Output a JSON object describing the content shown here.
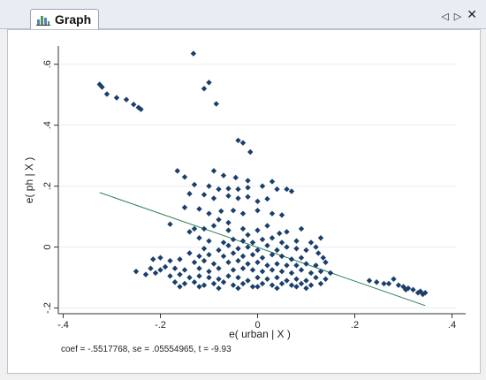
{
  "window": {
    "tab_label": "Graph",
    "tab_icon": "bar-chart-icon",
    "controls": {
      "prev": "◁",
      "next": "▷",
      "close": "✕"
    }
  },
  "caption": "coef = -.5517768, se = .05554965, t = -9.93",
  "colors": {
    "marker": "#1a3f6b",
    "line": "#2e7d5b",
    "plot_bg": "#ffffff",
    "grid": "#e8eef4"
  },
  "chart_data": {
    "type": "scatter",
    "xlabel": "e( urban | X )",
    "ylabel": "e( ph | X )",
    "xlim": [
      -0.41,
      0.41
    ],
    "ylim": [
      -0.21,
      0.66
    ],
    "xticks": [
      -0.4,
      -0.2,
      0,
      0.2,
      0.4
    ],
    "xtick_labels": [
      "-.4",
      "-.2",
      "0",
      ".2",
      ".4"
    ],
    "yticks": [
      -0.2,
      0,
      0.2,
      0.4,
      0.6
    ],
    "ytick_labels": [
      "-.2",
      "0",
      ".2",
      ".4",
      ".6"
    ],
    "grid": true,
    "fit_line": {
      "x": [
        -0.325,
        0.345
      ],
      "y": [
        0.179,
        -0.192
      ]
    },
    "points": [
      [
        -0.325,
        0.534
      ],
      [
        -0.32,
        0.525
      ],
      [
        -0.31,
        0.502
      ],
      [
        -0.29,
        0.49
      ],
      [
        -0.27,
        0.484
      ],
      [
        -0.255,
        0.468
      ],
      [
        -0.245,
        0.458
      ],
      [
        -0.24,
        0.452
      ],
      [
        -0.132,
        0.635
      ],
      [
        -0.1,
        0.54
      ],
      [
        -0.11,
        0.52
      ],
      [
        -0.085,
        0.47
      ],
      [
        -0.04,
        0.35
      ],
      [
        -0.03,
        0.342
      ],
      [
        -0.015,
        0.312
      ],
      [
        -0.165,
        0.25
      ],
      [
        -0.15,
        0.23
      ],
      [
        -0.09,
        0.25
      ],
      [
        -0.07,
        0.235
      ],
      [
        -0.045,
        0.228
      ],
      [
        -0.02,
        0.218
      ],
      [
        0.03,
        0.215
      ],
      [
        -0.13,
        0.205
      ],
      [
        -0.1,
        0.2
      ],
      [
        -0.08,
        0.19
      ],
      [
        -0.06,
        0.192
      ],
      [
        -0.04,
        0.19
      ],
      [
        -0.02,
        0.195
      ],
      [
        0.01,
        0.2
      ],
      [
        0.04,
        0.19
      ],
      [
        0.06,
        0.19
      ],
      [
        0.07,
        0.183
      ],
      [
        -0.14,
        0.175
      ],
      [
        -0.11,
        0.172
      ],
      [
        -0.09,
        0.16
      ],
      [
        -0.06,
        0.168
      ],
      [
        -0.04,
        0.16
      ],
      [
        -0.02,
        0.165
      ],
      [
        0.0,
        0.15
      ],
      [
        0.02,
        0.158
      ],
      [
        -0.15,
        0.13
      ],
      [
        -0.12,
        0.125
      ],
      [
        -0.1,
        0.11
      ],
      [
        -0.075,
        0.118
      ],
      [
        -0.05,
        0.12
      ],
      [
        -0.03,
        0.11
      ],
      [
        0.0,
        0.12
      ],
      [
        0.03,
        0.11
      ],
      [
        0.05,
        0.105
      ],
      [
        -0.08,
        0.09
      ],
      [
        -0.06,
        0.08
      ],
      [
        -0.18,
        0.075
      ],
      [
        -0.13,
        0.06
      ],
      [
        -0.11,
        0.06
      ],
      [
        -0.09,
        0.07
      ],
      [
        -0.06,
        0.055
      ],
      [
        -0.03,
        0.06
      ],
      [
        0.0,
        0.055
      ],
      [
        0.02,
        0.07
      ],
      [
        0.045,
        0.045
      ],
      [
        0.06,
        0.05
      ],
      [
        0.09,
        0.06
      ],
      [
        -0.14,
        0.05
      ],
      [
        -0.02,
        0.04
      ],
      [
        -0.12,
        0.03
      ],
      [
        -0.1,
        0.02
      ],
      [
        -0.07,
        0.015
      ],
      [
        -0.05,
        0.025
      ],
      [
        -0.03,
        0.02
      ],
      [
        -0.01,
        0.015
      ],
      [
        0.01,
        0.025
      ],
      [
        0.03,
        0.03
      ],
      [
        0.05,
        0.015
      ],
      [
        0.08,
        0.02
      ],
      [
        0.11,
        0.015
      ],
      [
        0.12,
        0.0
      ],
      [
        0.13,
        0.03
      ],
      [
        -0.11,
        -0.005
      ],
      [
        -0.08,
        -0.01
      ],
      [
        -0.06,
        0.005
      ],
      [
        -0.04,
        -0.005
      ],
      [
        -0.02,
        0.0
      ],
      [
        0.0,
        -0.01
      ],
      [
        0.02,
        0.005
      ],
      [
        0.04,
        -0.01
      ],
      [
        0.06,
        0.0
      ],
      [
        0.08,
        -0.005
      ],
      [
        0.1,
        -0.01
      ],
      [
        0.125,
        -0.02
      ],
      [
        0.135,
        -0.035
      ],
      [
        -0.14,
        -0.02
      ],
      [
        -0.12,
        -0.03
      ],
      [
        -0.1,
        -0.025
      ],
      [
        -0.07,
        -0.03
      ],
      [
        -0.05,
        -0.02
      ],
      [
        -0.03,
        -0.03
      ],
      [
        -0.01,
        -0.025
      ],
      [
        0.01,
        -0.035
      ],
      [
        0.03,
        -0.025
      ],
      [
        0.05,
        -0.03
      ],
      [
        0.07,
        -0.04
      ],
      [
        0.09,
        -0.035
      ],
      [
        -0.2,
        -0.035
      ],
      [
        -0.215,
        -0.04
      ],
      [
        -0.18,
        -0.045
      ],
      [
        -0.16,
        -0.04
      ],
      [
        -0.13,
        -0.05
      ],
      [
        -0.11,
        -0.045
      ],
      [
        -0.09,
        -0.055
      ],
      [
        -0.06,
        -0.05
      ],
      [
        -0.04,
        -0.045
      ],
      [
        -0.02,
        -0.055
      ],
      [
        0.0,
        -0.05
      ],
      [
        0.02,
        -0.06
      ],
      [
        0.04,
        -0.055
      ],
      [
        0.06,
        -0.06
      ],
      [
        0.08,
        -0.06
      ],
      [
        0.1,
        -0.055
      ],
      [
        0.12,
        -0.06
      ],
      [
        0.14,
        -0.05
      ],
      [
        -0.22,
        -0.07
      ],
      [
        -0.2,
        -0.075
      ],
      [
        -0.19,
        -0.065
      ],
      [
        -0.17,
        -0.07
      ],
      [
        -0.15,
        -0.075
      ],
      [
        -0.12,
        -0.07
      ],
      [
        -0.1,
        -0.08
      ],
      [
        -0.08,
        -0.07
      ],
      [
        -0.05,
        -0.075
      ],
      [
        -0.03,
        -0.07
      ],
      [
        -0.01,
        -0.075
      ],
      [
        0.01,
        -0.08
      ],
      [
        0.03,
        -0.075
      ],
      [
        0.05,
        -0.08
      ],
      [
        0.07,
        -0.085
      ],
      [
        0.09,
        -0.075
      ],
      [
        0.11,
        -0.085
      ],
      [
        0.13,
        -0.08
      ],
      [
        0.15,
        -0.085
      ],
      [
        -0.25,
        -0.08
      ],
      [
        -0.23,
        -0.09
      ],
      [
        -0.21,
        -0.085
      ],
      [
        -0.18,
        -0.095
      ],
      [
        -0.16,
        -0.09
      ],
      [
        -0.14,
        -0.1
      ],
      [
        -0.12,
        -0.095
      ],
      [
        -0.1,
        -0.1
      ],
      [
        -0.08,
        -0.105
      ],
      [
        -0.06,
        -0.095
      ],
      [
        -0.04,
        -0.1
      ],
      [
        -0.02,
        -0.11
      ],
      [
        0.0,
        -0.1
      ],
      [
        0.02,
        -0.105
      ],
      [
        0.04,
        -0.1
      ],
      [
        0.06,
        -0.11
      ],
      [
        0.08,
        -0.105
      ],
      [
        0.1,
        -0.11
      ],
      [
        0.12,
        -0.1
      ],
      [
        0.14,
        -0.105
      ],
      [
        -0.17,
        -0.115
      ],
      [
        -0.15,
        -0.12
      ],
      [
        -0.13,
        -0.115
      ],
      [
        -0.11,
        -0.125
      ],
      [
        -0.09,
        -0.12
      ],
      [
        -0.07,
        -0.115
      ],
      [
        -0.05,
        -0.125
      ],
      [
        -0.03,
        -0.12
      ],
      [
        -0.01,
        -0.13
      ],
      [
        0.01,
        -0.12
      ],
      [
        0.03,
        -0.125
      ],
      [
        0.05,
        -0.12
      ],
      [
        0.07,
        -0.125
      ],
      [
        0.09,
        -0.12
      ],
      [
        0.11,
        -0.125
      ],
      [
        0.13,
        -0.12
      ],
      [
        -0.16,
        -0.13
      ],
      [
        -0.12,
        -0.13
      ],
      [
        -0.08,
        -0.135
      ],
      [
        -0.04,
        -0.135
      ],
      [
        0.0,
        -0.13
      ],
      [
        0.04,
        -0.135
      ],
      [
        0.08,
        -0.13
      ],
      [
        0.1,
        -0.135
      ],
      [
        0.23,
        -0.11
      ],
      [
        0.245,
        -0.115
      ],
      [
        0.26,
        -0.12
      ],
      [
        0.27,
        -0.12
      ],
      [
        0.28,
        -0.105
      ],
      [
        0.29,
        -0.125
      ],
      [
        0.3,
        -0.13
      ],
      [
        0.31,
        -0.135
      ],
      [
        0.32,
        -0.14
      ],
      [
        0.33,
        -0.15
      ],
      [
        0.335,
        -0.145
      ],
      [
        0.34,
        -0.155
      ],
      [
        0.345,
        -0.15
      ],
      [
        0.305,
        -0.14
      ]
    ]
  }
}
